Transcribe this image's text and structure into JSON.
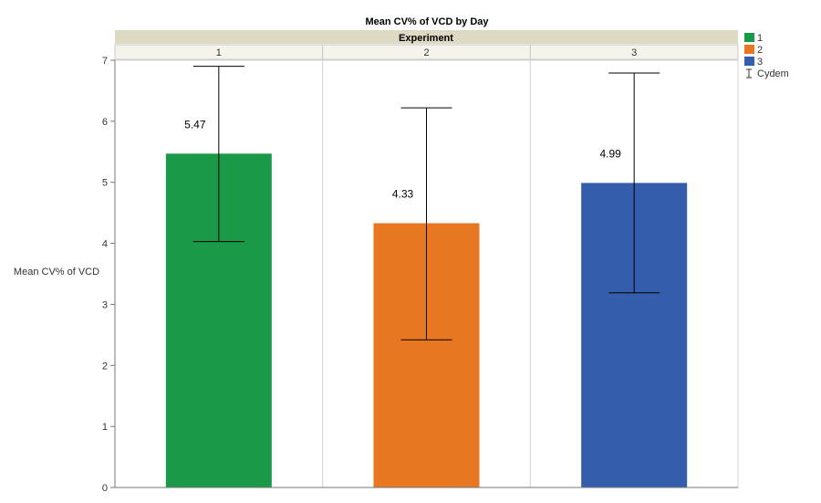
{
  "chart_data": {
    "type": "bar",
    "title": "Mean CV% of VCD by Day",
    "panel_header": "Experiment",
    "ylabel": "Mean CV% of VCD",
    "xlabel": "",
    "ylim": [
      0,
      7
    ],
    "yticks": [
      0,
      1,
      2,
      3,
      4,
      5,
      6,
      7
    ],
    "grid": false,
    "categories": [
      "1",
      "2",
      "3"
    ],
    "values": [
      5.47,
      4.33,
      4.99
    ],
    "value_labels": [
      "5.47",
      "4.33",
      "4.99"
    ],
    "error_bars": [
      {
        "low": 4.03,
        "high": 6.9
      },
      {
        "low": 2.42,
        "high": 6.22
      },
      {
        "low": 3.19,
        "high": 6.79
      }
    ],
    "colors": [
      "#1a9a48",
      "#e87722",
      "#345eac"
    ],
    "legend": {
      "placement": "top-right",
      "entries": [
        "1",
        "2",
        "3"
      ],
      "error_entry": "Cydem"
    }
  }
}
